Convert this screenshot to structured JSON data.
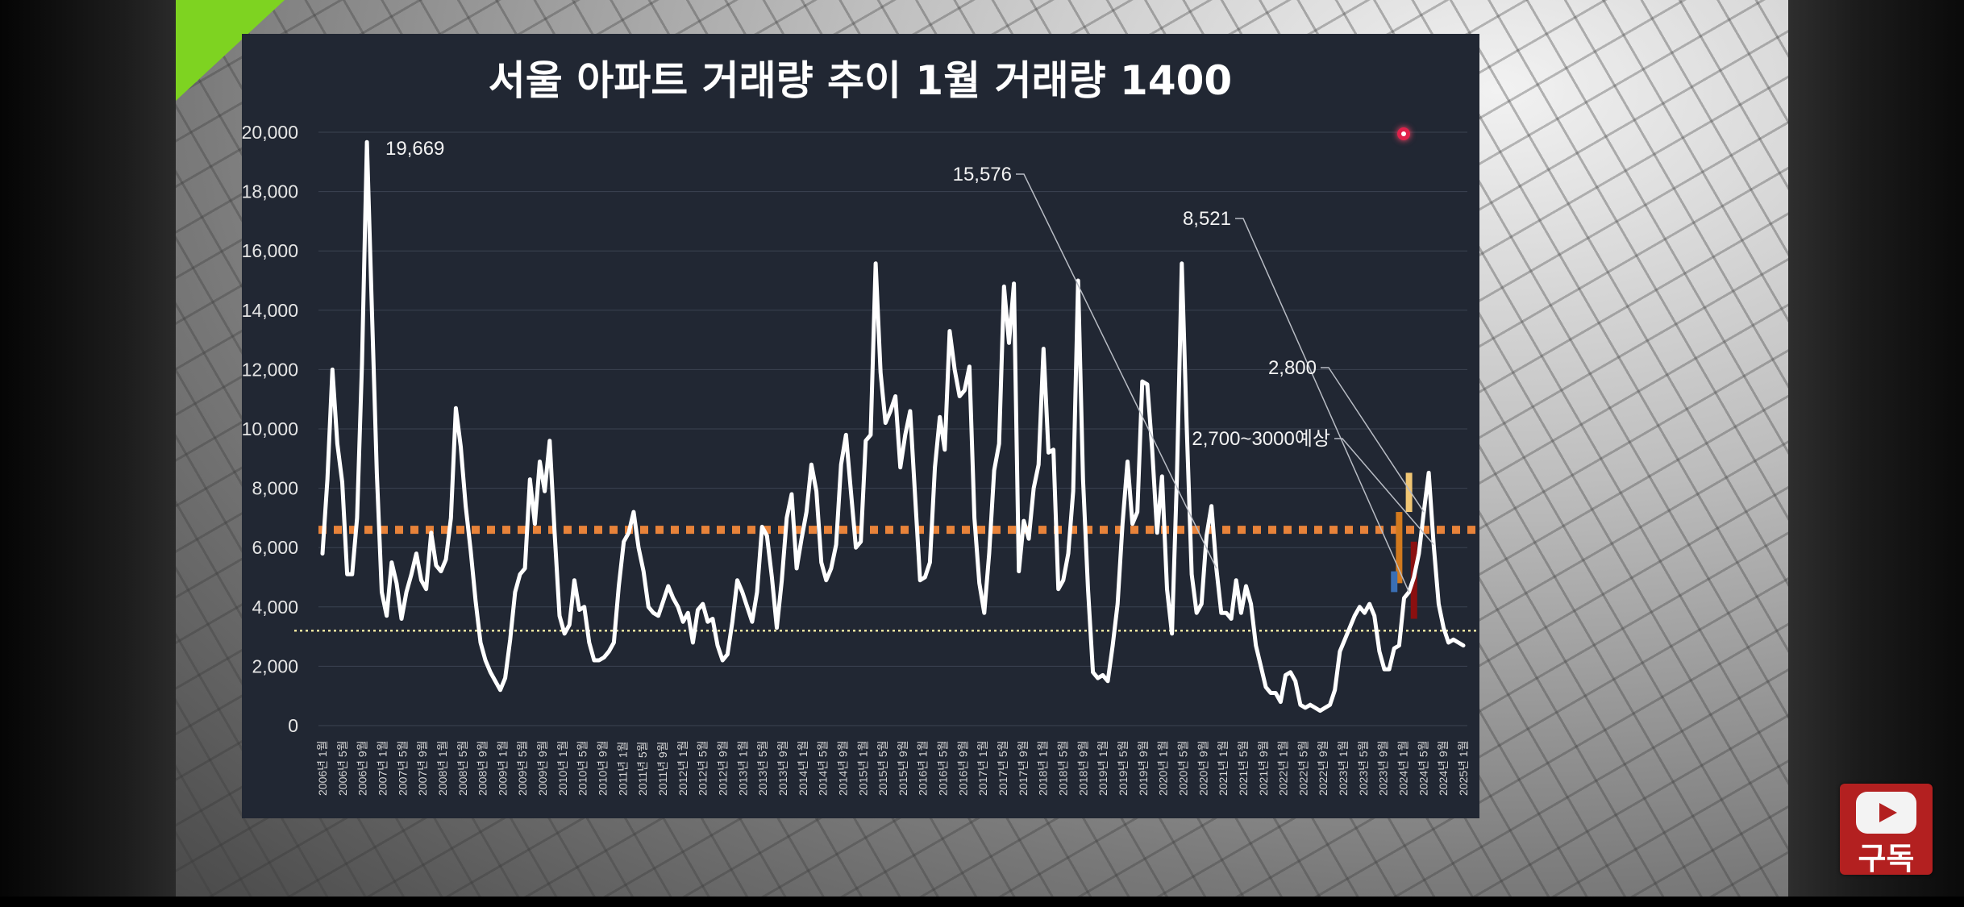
{
  "chart_data": {
    "type": "line",
    "title": "서울 아파트 거래량 추이 1월 거래량 1400",
    "ylim": [
      0,
      20000
    ],
    "y_ticks": [
      "0",
      "2,000",
      "4,000",
      "6,000",
      "8,000",
      "10,000",
      "12,000",
      "14,000",
      "16,000",
      "18,000",
      "20,000"
    ],
    "x_tick_labels": [
      "2006년 1월",
      "2006년 5월",
      "2006년 9월",
      "2007년 1월",
      "2007년 5월",
      "2007년 9월",
      "2008년 1월",
      "2008년 5월",
      "2008년 9월",
      "2009년 1월",
      "2009년 5월",
      "2009년 9월",
      "2010년 1월",
      "2010년 5월",
      "2010년 9월",
      "2011년 1월",
      "2011년 5월",
      "2011년 9월",
      "2012년 1월",
      "2012년 5월",
      "2012년 9월",
      "2013년 1월",
      "2013년 5월",
      "2013년 9월",
      "2014년 1월",
      "2014년 5월",
      "2014년 9월",
      "2015년 1월",
      "2015년 5월",
      "2015년 9월",
      "2016년 1월",
      "2016년 5월",
      "2016년 9월",
      "2017년 1월",
      "2017년 5월",
      "2017년 9월",
      "2018년 1월",
      "2018년 5월",
      "2018년 9월",
      "2019년 1월",
      "2019년 5월",
      "2019년 9월",
      "2020년 1월",
      "2020년 5월",
      "2020년 9월",
      "2021년 1월",
      "2021년 5월",
      "2021년 9월",
      "2022년 1월",
      "2022년 5월",
      "2022년 9월",
      "2023년 1월",
      "2023년 5월",
      "2023년 9월",
      "2024년 1월",
      "2024년 5월",
      "2024년 9월",
      "2025년 1월"
    ],
    "series": [
      {
        "values": [
          5800,
          8300,
          12000,
          9500,
          8200,
          5100,
          5100,
          7000,
          12200,
          19669,
          14000,
          8500,
          4500,
          3700,
          5500,
          4800,
          3600,
          4500,
          5100,
          5800,
          4900,
          4600,
          6500,
          5400,
          5200,
          5600,
          7000,
          10700,
          9400,
          7400,
          5900,
          4200,
          2800,
          2200,
          1800,
          1500,
          1200,
          1600,
          2900,
          4500,
          5100,
          5300,
          8300,
          6800,
          8900,
          7900,
          9600,
          6500,
          3700,
          3100,
          3400,
          4900,
          3900,
          4000,
          2800,
          2200,
          2200,
          2300,
          2500,
          2800,
          4700,
          6200,
          6500,
          7200,
          6000,
          5200,
          4000,
          3800,
          3700,
          4200,
          4700,
          4300,
          4000,
          3500,
          3800,
          2800,
          3900,
          4100,
          3500,
          3600,
          2700,
          2200,
          2400,
          3500,
          4900,
          4500,
          4000,
          3500,
          4500,
          6700,
          6400,
          5000,
          3300,
          4900,
          7000,
          7800,
          5300,
          6300,
          7200,
          8800,
          7900,
          5500,
          4900,
          5300,
          6100,
          8800,
          9800,
          7900,
          6000,
          6200,
          9600,
          9800,
          15576,
          11900,
          10200,
          10600,
          11100,
          8700,
          9800,
          10600,
          7700,
          4900,
          5000,
          5500,
          8700,
          10400,
          9300,
          13300,
          12000,
          11100,
          11300,
          12100,
          7000,
          4800,
          3800,
          5800,
          8600,
          9500,
          14800,
          12900,
          14900,
          5200,
          6900,
          6300,
          8000,
          8800,
          12700,
          9200,
          9300,
          4600,
          4900,
          5800,
          7900,
          15000,
          8300,
          4600,
          1800,
          1600,
          1700,
          1500,
          2700,
          4100,
          6800,
          8900,
          6800,
          7200,
          11600,
          11500,
          9300,
          6500,
          8400,
          4600,
          3100,
          8300,
          15576,
          10000,
          5100,
          3800,
          4100,
          6400,
          7400,
          5300,
          3800,
          3800,
          3600,
          4900,
          3800,
          4700,
          4100,
          2700,
          2000,
          1300,
          1100,
          1100,
          800,
          1700,
          1800,
          1500,
          700,
          600,
          700,
          600,
          500,
          600,
          700,
          1200,
          2500,
          2900,
          3300,
          3700,
          4000,
          3800,
          4100,
          3700,
          2500,
          1900,
          1900,
          2600,
          2700,
          4300,
          4500,
          5000,
          5800,
          7200,
          8521,
          6100,
          4100,
          3300,
          2800,
          2900,
          2800,
          2700
        ]
      }
    ],
    "reference_lines": [
      {
        "value": 6600,
        "color": "#e8833a",
        "style": "dotted-thick"
      },
      {
        "value": 3200,
        "color": "#f3e6a0",
        "style": "dotted-thin"
      }
    ],
    "annotations": [
      {
        "text": "19,669",
        "index": 9
      },
      {
        "text": "15,576",
        "index": 181
      },
      {
        "text": "8,521",
        "index": 220
      },
      {
        "text": "2,800",
        "index": 223
      },
      {
        "text": "2,700~3000예상",
        "index": 225
      }
    ],
    "highlight_bars": [
      {
        "index": 218,
        "from": 4800,
        "to": 7200,
        "color": "#d27a1e"
      },
      {
        "index": 220,
        "from": 7200,
        "to": 8521,
        "color": "#f0c674"
      },
      {
        "index": 221,
        "from": 3600,
        "to": 6200,
        "color": "#8b1010"
      },
      {
        "index": 217,
        "from": 4500,
        "to": 5200,
        "color": "#3a6fb5"
      }
    ],
    "grid": true,
    "colors": {
      "line": "#ffffff",
      "background": "#212733",
      "grid": "#3b4352"
    }
  },
  "subscribe": {
    "label": "구독",
    "icon": "youtube-play-icon"
  }
}
